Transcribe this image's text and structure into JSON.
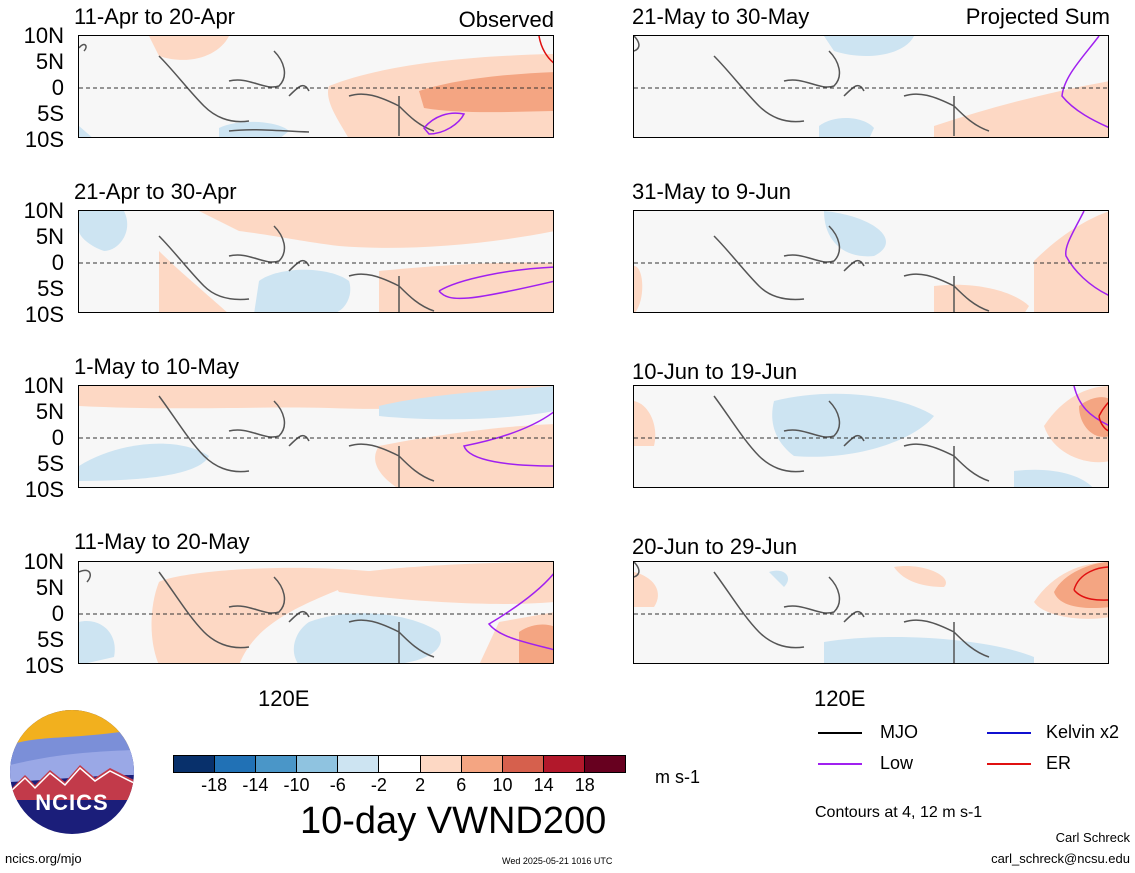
{
  "panels": [
    {
      "title": "11-Apr to 20-Apr",
      "tag": "Observed"
    },
    {
      "title": "21-May to 30-May",
      "tag": "Projected Sum"
    },
    {
      "title": "21-Apr to 30-Apr",
      "tag": ""
    },
    {
      "title": "31-May to 9-Jun",
      "tag": ""
    },
    {
      "title": "1-May to 10-May",
      "tag": ""
    },
    {
      "title": "10-Jun to 19-Jun",
      "tag": ""
    },
    {
      "title": "11-May to 20-May",
      "tag": ""
    },
    {
      "title": "20-Jun to 29-Jun",
      "tag": ""
    }
  ],
  "lat_labels": [
    "10N",
    "5N",
    "0",
    "5S",
    "10S"
  ],
  "lon_label": "120E",
  "colorbar": {
    "colors": [
      "#08306b",
      "#2171b5",
      "#4a96c8",
      "#8fc3e0",
      "#cde4f2",
      "#ffffff",
      "#fdd8c4",
      "#f4a582",
      "#d6604d",
      "#b2182b",
      "#67001f"
    ],
    "labels": [
      "-18",
      "-14",
      "-10",
      "-6",
      "-2",
      "2",
      "6",
      "10",
      "14",
      "18"
    ],
    "unit": "m s-1",
    "title": "10-day VWND200"
  },
  "legend": {
    "items": [
      {
        "label": "MJO",
        "color": "#000000"
      },
      {
        "label": "Kelvin x2",
        "color": "#1010d0"
      },
      {
        "label": "Low",
        "color": "#a020f0"
      },
      {
        "label": "ER",
        "color": "#e01010"
      }
    ],
    "contours": "Contours at 4, 12 m s-1"
  },
  "logo": {
    "text": "NCICS"
  },
  "footer": {
    "site": "ncics.org/mjo",
    "date": "Wed 2025-05-21 1016 UTC",
    "author": "Carl Schreck",
    "email": "carl_schreck@ncsu.edu"
  }
}
